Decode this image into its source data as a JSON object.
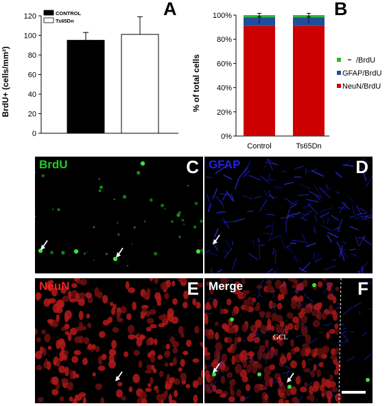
{
  "panel_letters": {
    "a": "A",
    "b": "B",
    "c": "C",
    "d": "D",
    "e": "E",
    "f": "F"
  },
  "chart_data": [
    {
      "type": "bar",
      "panel": "A",
      "categories": [
        "CONTROL",
        "Ts65Dn"
      ],
      "values": [
        95,
        101
      ],
      "errors": [
        8,
        18
      ],
      "ylabel": "BrdU+ (cells/mm²)",
      "ylim": [
        0,
        120
      ],
      "yticks": [
        "0",
        "20",
        "40",
        "60",
        "80",
        "100",
        "120"
      ],
      "legend": [
        {
          "name": "CONTROL",
          "color": "#000000"
        },
        {
          "name": "Ts65Dn",
          "color": "#ffffff"
        }
      ],
      "legend_position": "top-left",
      "grid": false
    },
    {
      "type": "bar",
      "stacked": true,
      "panel": "B",
      "categories": [
        "Control",
        "Ts65Dn"
      ],
      "ylabel": "% of total cells",
      "ylim": [
        0,
        100
      ],
      "yticks": [
        "0%",
        "20%",
        "40%",
        "60%",
        "80%",
        "100%"
      ],
      "series": [
        {
          "name": "NeuN/BrdU",
          "values": [
            91,
            91
          ],
          "color": "#cc0000"
        },
        {
          "name": "GFAP/BrdU",
          "values": [
            7,
            7
          ],
          "color": "#1f4e9a"
        },
        {
          "name": "/BrdU",
          "values": [
            2,
            2
          ],
          "color": "#2eb82e"
        }
      ],
      "errors": [
        1.5,
        1.5
      ],
      "legend_position": "right",
      "grid": false
    }
  ],
  "micrographs": {
    "c": {
      "label": "BrdU",
      "letter": "C",
      "label_color": "#22cc22"
    },
    "d": {
      "label": "GFAP",
      "letter": "D",
      "label_color": "#2222ee"
    },
    "e": {
      "label": "NeuN",
      "letter": "E",
      "label_color": "#ee2222"
    },
    "f": {
      "label": "Merge",
      "letter": "F",
      "label_color": "#ffffff",
      "annotation": "GCL"
    }
  },
  "colors": {
    "neun": "#cc0000",
    "gfap": "#1f4e9a",
    "brdu": "#2eb82e"
  }
}
